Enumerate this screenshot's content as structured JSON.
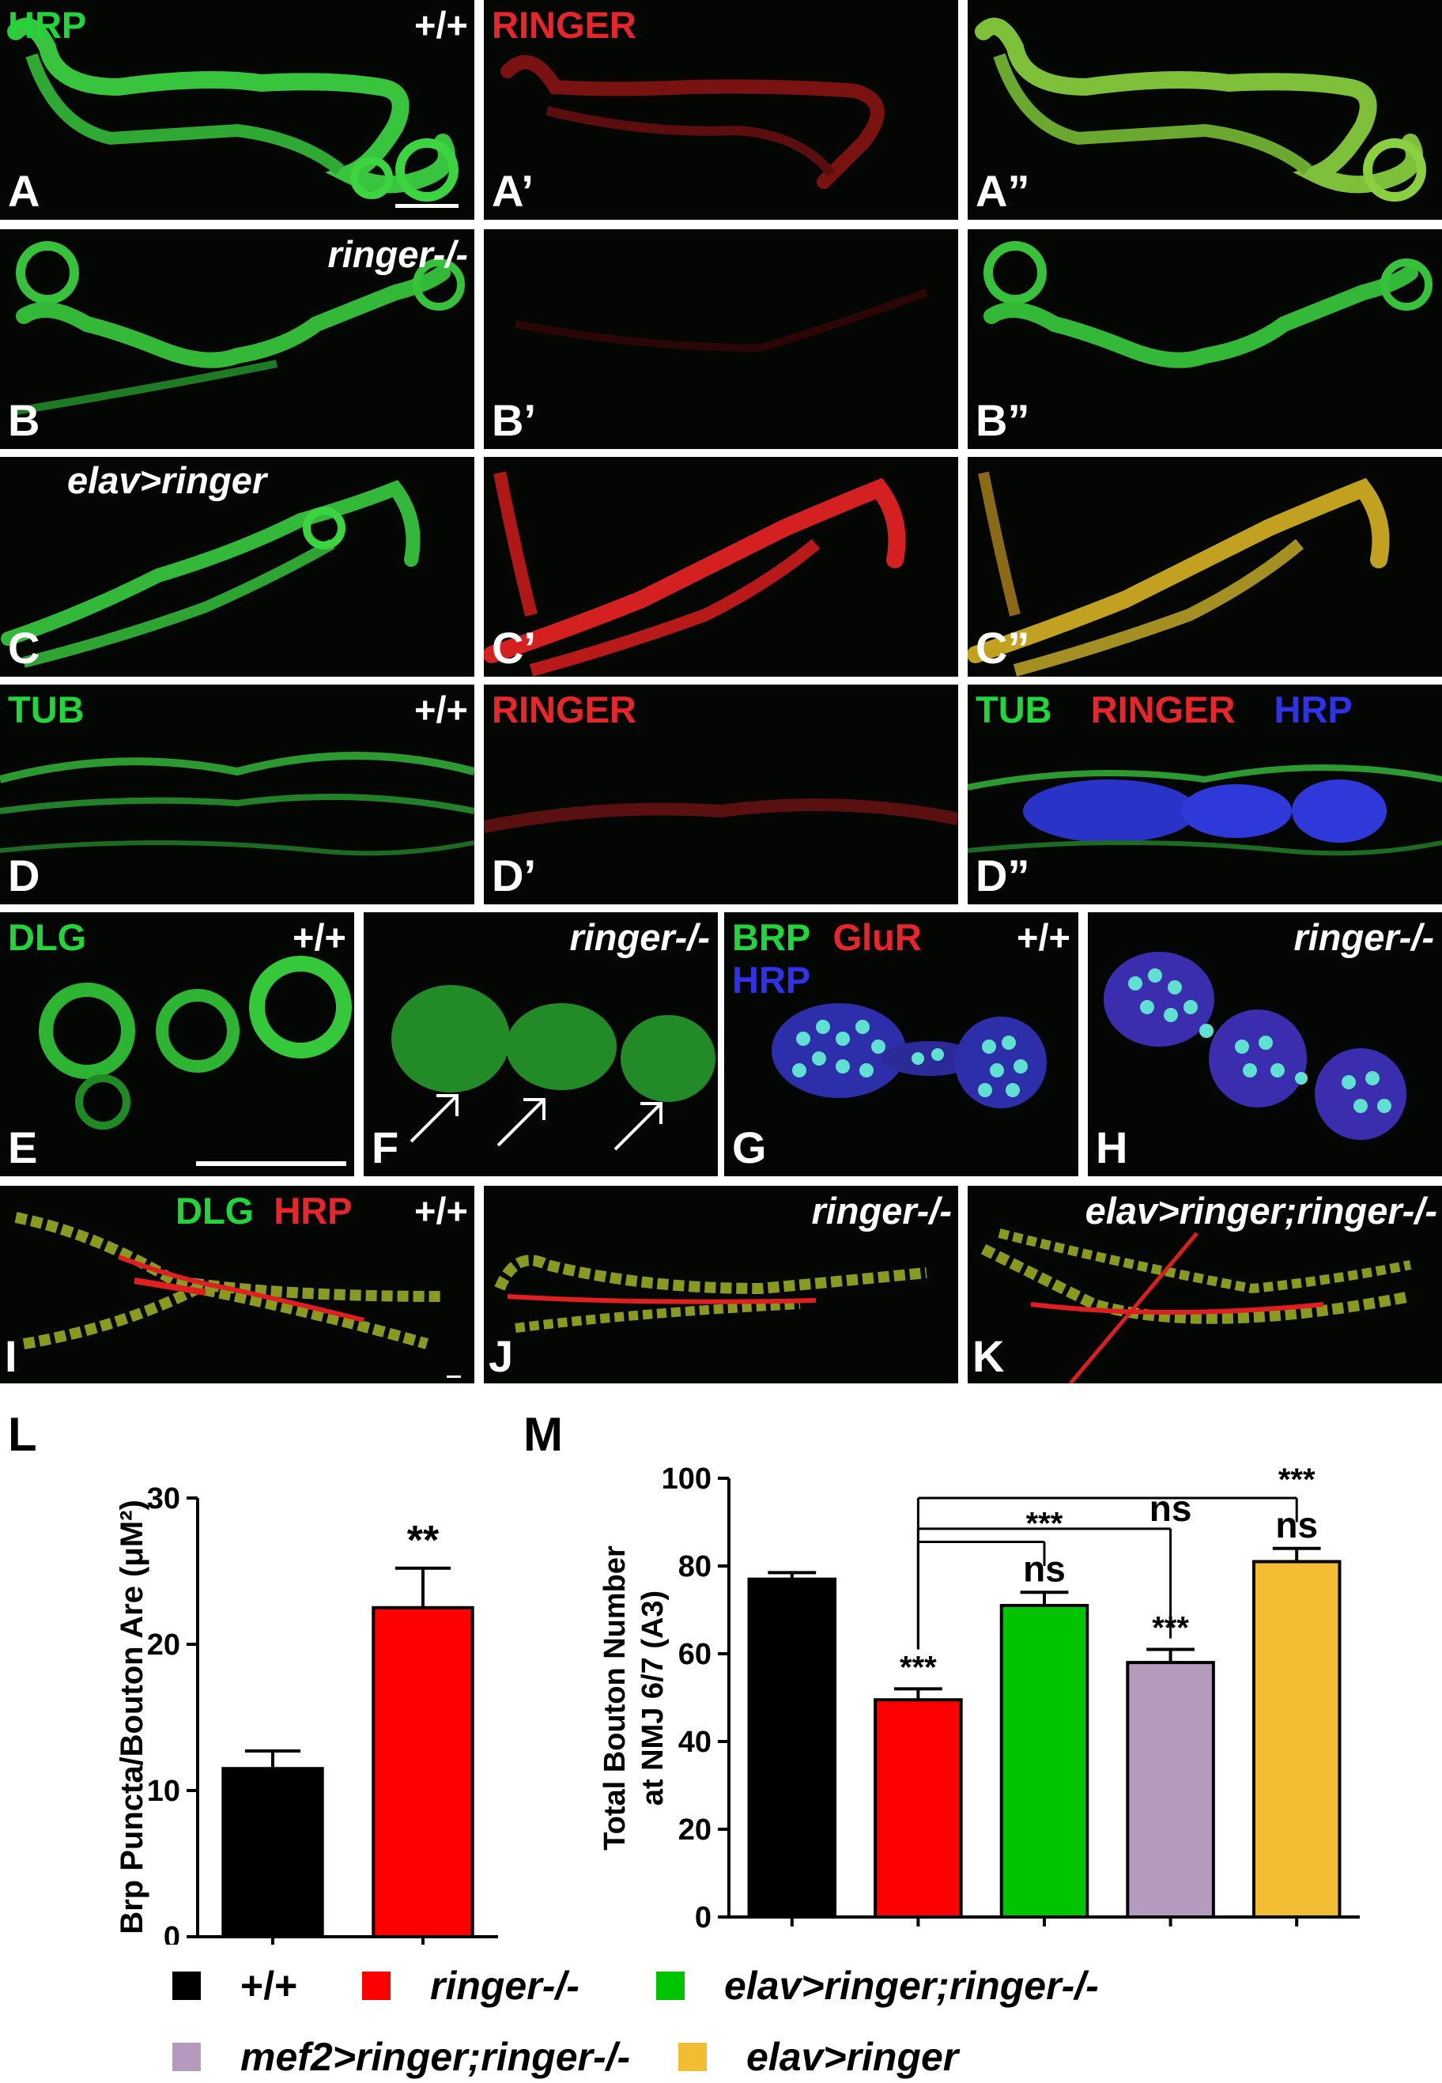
{
  "panels": {
    "A": {
      "letter": "A",
      "channel": "HRP",
      "genotype": "+/+"
    },
    "A1": {
      "letter": "A’",
      "channel": "RINGER"
    },
    "A2": {
      "letter": "A”"
    },
    "B": {
      "letter": "B",
      "genotype": "ringer-/-"
    },
    "B1": {
      "letter": "B’"
    },
    "B2": {
      "letter": "B”"
    },
    "C": {
      "letter": "C",
      "genotype": "elav>ringer"
    },
    "C1": {
      "letter": "C’"
    },
    "C2": {
      "letter": "C”"
    },
    "D": {
      "letter": "D",
      "channel": "TUB",
      "genotype": "+/+"
    },
    "D1": {
      "letter": "D’",
      "channel": "RINGER"
    },
    "D2": {
      "letter": "D”",
      "channels": [
        "TUB",
        "RINGER",
        "HRP"
      ]
    },
    "E": {
      "letter": "E",
      "channel": "DLG",
      "genotype": "+/+"
    },
    "F": {
      "letter": "F",
      "genotype": "ringer-/-"
    },
    "G": {
      "letter": "G",
      "channels": [
        "BRP",
        "GluR",
        "HRP"
      ],
      "genotype": "+/+"
    },
    "H": {
      "letter": "H",
      "genotype": "ringer-/-"
    },
    "I": {
      "letter": "I",
      "channels": [
        "DLG",
        "HRP"
      ],
      "genotype": "+/+"
    },
    "J": {
      "letter": "J",
      "genotype": "ringer-/-"
    },
    "K": {
      "letter": "K",
      "genotype": "elav>ringer;ringer-/-"
    }
  },
  "colors": {
    "green": "#22d53a",
    "red": "#e6262b",
    "blue": "#2f33e8",
    "black": "#000000",
    "lavender": "#b49bbd",
    "gold": "#f2bd33",
    "bar_red": "#ff0000",
    "bar_green": "#00c400"
  },
  "chart_data": [
    {
      "panel_label": "L",
      "type": "bar",
      "ylabel": "Brp Puncta/Bouton Are (μM²)",
      "ylim": [
        0,
        30
      ],
      "yticks": [
        0,
        10,
        20,
        30
      ],
      "categories": [
        "+/+",
        "ringer-/-"
      ],
      "values": [
        11.5,
        22.5
      ],
      "errors": [
        1.2,
        2.7
      ],
      "colors": [
        "#000000",
        "#ff0000"
      ],
      "annotations": [
        {
          "category": "ringer-/-",
          "text": "**"
        }
      ]
    },
    {
      "panel_label": "M",
      "type": "bar",
      "ylabel_lines": [
        "Total Bouton Number",
        "at NMJ 6/7 (A3)"
      ],
      "ylim": [
        0,
        100
      ],
      "yticks": [
        0,
        20,
        40,
        60,
        80,
        100
      ],
      "categories": [
        "+/+",
        "ringer-/-",
        "elav>ringer;ringer-/-",
        "mef2>ringer;ringer-/-",
        "elav>ringer"
      ],
      "values": [
        77,
        49.5,
        71,
        58,
        81
      ],
      "errors": [
        1.5,
        2.5,
        3,
        3,
        3
      ],
      "colors": [
        "#000000",
        "#ff0000",
        "#00c400",
        "#b49bbd",
        "#f2bd33"
      ],
      "bar_annotations": [
        "",
        "***",
        "ns",
        "***",
        "ns"
      ],
      "comparisons": [
        {
          "from": "ringer-/-",
          "to": "elav>ringer;ringer-/-",
          "text": "***"
        },
        {
          "from": "ringer-/-",
          "to": "mef2>ringer;ringer-/-",
          "text": "ns"
        },
        {
          "from": "ringer-/-",
          "to": "elav>ringer",
          "text": "***"
        }
      ]
    }
  ],
  "legend": [
    {
      "label": "+/+",
      "color": "#000000",
      "italic": false
    },
    {
      "label": "ringer-/-",
      "color": "#ff0000",
      "italic": true
    },
    {
      "label": "elav>ringer;ringer-/-",
      "color": "#00c400",
      "italic": true
    },
    {
      "label": "mef2>ringer;ringer-/-",
      "color": "#b49bbd",
      "italic": true
    },
    {
      "label": "elav>ringer",
      "color": "#f2bd33",
      "italic": true
    }
  ]
}
